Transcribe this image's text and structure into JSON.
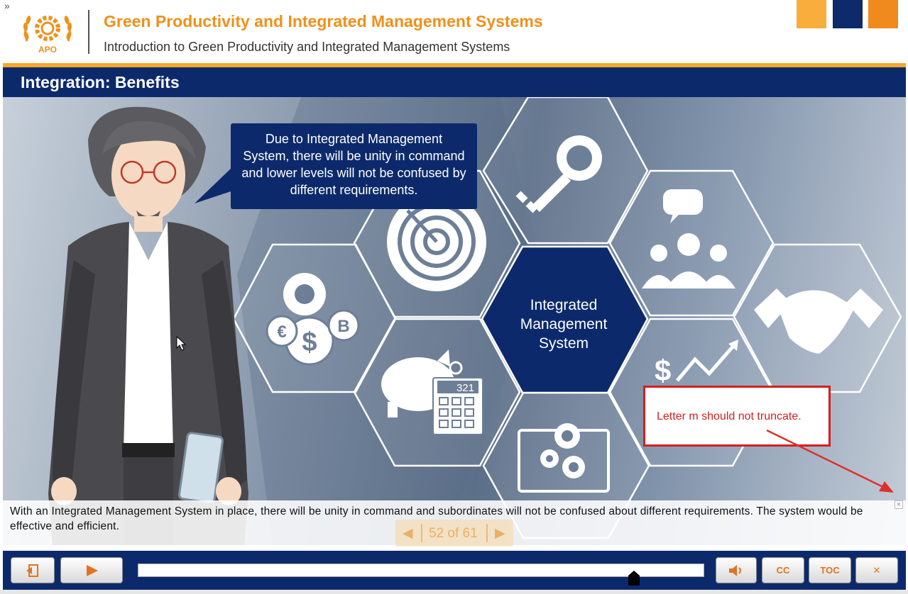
{
  "header": {
    "expand_glyph": "»",
    "logo_text": "APO",
    "course_title": "Green Productivity and Integrated Management Systems",
    "course_subtitle": "Introduction to Green Productivity and Integrated Management Systems",
    "brand_colors": [
      "#f9ad3c",
      "#0d2a6b",
      "#f08a1c"
    ]
  },
  "slide": {
    "title": "Integration: Benefits",
    "speech_bubble": "Due to Integrated Management System, there will be unity in command and lower levels will not be confused by different requirements.",
    "center_hexagon": "Integrated Management System",
    "calculator_display": "321",
    "hexagon_icons": [
      "key-icon",
      "chat-team-icon",
      "handshake-icon",
      "growth-chart-icon",
      "gear-monitor-icon",
      "piggy-bank-calculator-icon",
      "currency-gears-icon",
      "target-icon"
    ]
  },
  "review_note": {
    "text": "Letter m should not truncate."
  },
  "caption": {
    "text": "With an Integrated Management System in place, there will be unity in command and subordinates will not be confused about different requirements. The system would be effective and efficient.",
    "close_glyph": "×"
  },
  "pager": {
    "prev": "◀",
    "text": "52 of 61",
    "next": "▶"
  },
  "controls": {
    "exit_label": "⎆",
    "play_label": "▶",
    "volume_label": "🔊",
    "cc_label": "CC",
    "toc_label": "TOC",
    "close_label": "✕",
    "progress": 0.876
  },
  "colors": {
    "navy": "#0c2a6b",
    "orange": "#f0901a",
    "review_red": "#d41f1f"
  }
}
